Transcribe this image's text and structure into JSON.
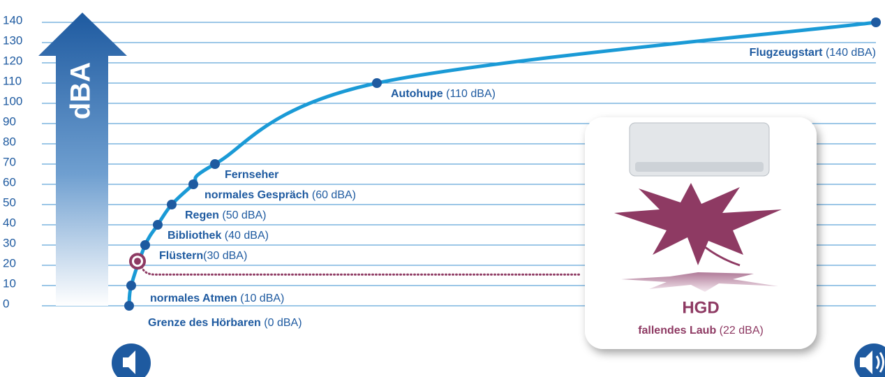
{
  "chart_data": {
    "type": "line",
    "y_label": "dBA",
    "ylim": [
      0,
      140
    ],
    "yticks": [
      0,
      10,
      20,
      30,
      40,
      50,
      60,
      70,
      80,
      90,
      100,
      110,
      120,
      130,
      140
    ],
    "grid": true,
    "color": "#1a9ad6",
    "values": [
      0,
      10,
      30,
      40,
      50,
      60,
      70,
      110,
      140
    ],
    "point_labels": [
      "Grenze des Hörbaren",
      "normales Atmen",
      "Flüstern",
      "Bibliothek",
      "Regen",
      "normales Gespräch",
      "Fernseher",
      "Autohupe",
      "Flugzeugstart"
    ],
    "value_labels": [
      "(0 dBA)",
      "(10 dBA)",
      "(30 dBA)",
      "(40 dBA)",
      "(50 dBA)",
      "(60 dBA)",
      null,
      "(110 dBA)",
      "(140 dBA)"
    ],
    "highlight": {
      "title": "HGD",
      "label": "fallendes Laub",
      "value": 22,
      "value_label": "(22 dBA)",
      "color": "#8e3a63"
    }
  }
}
